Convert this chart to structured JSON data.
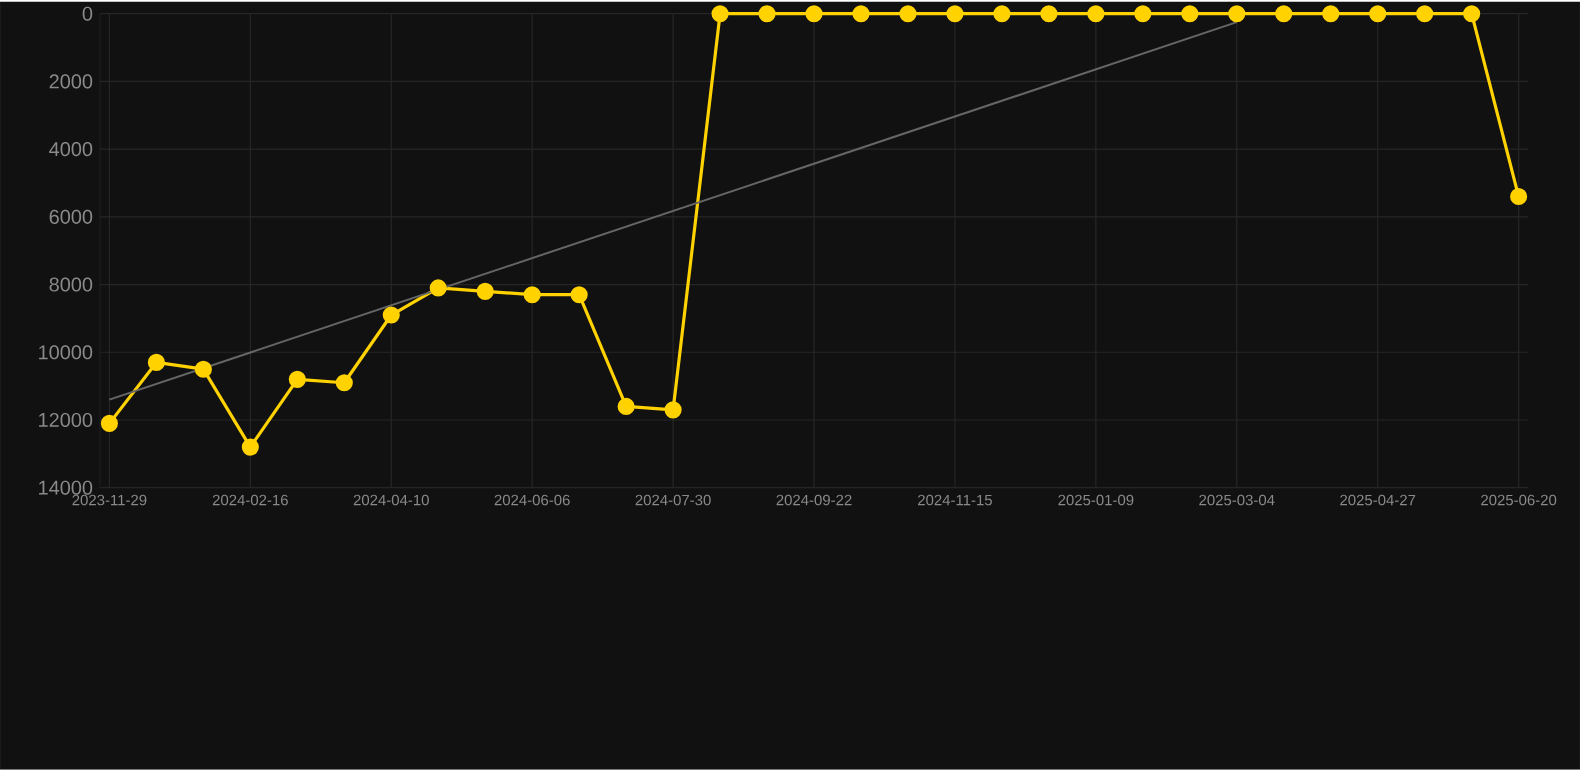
{
  "chart_data": {
    "type": "line",
    "categories": [
      "2023-11-29",
      null,
      null,
      "2024-02-16",
      null,
      null,
      "2024-04-10",
      null,
      null,
      "2024-06-06",
      null,
      null,
      "2024-07-30",
      null,
      null,
      "2024-09-22",
      null,
      null,
      "2024-11-15",
      null,
      null,
      "2025-01-09",
      null,
      null,
      "2025-03-04",
      null,
      null,
      "2025-04-27",
      null,
      null,
      "2025-06-20"
    ],
    "series": [
      {
        "color": "#ffd200",
        "values": [
          12100,
          10300,
          10500,
          12800,
          10800,
          10900,
          8900,
          8100,
          8200,
          8300,
          8300,
          11600,
          11700,
          0,
          0,
          0,
          0,
          0,
          0,
          0,
          0,
          0,
          0,
          0,
          0,
          0,
          0,
          0,
          0,
          0,
          5400
        ]
      },
      {
        "type": "line",
        "color": "#666666",
        "marker": "none",
        "values": [
          11400,
          null,
          null,
          null,
          null,
          null,
          null,
          null,
          null,
          null,
          null,
          null,
          null,
          null,
          null,
          null,
          null,
          null,
          null,
          null,
          null,
          null,
          null,
          null,
          250,
          null,
          null,
          null,
          null,
          null,
          null
        ]
      }
    ],
    "ylim": [
      14000,
      0
    ],
    "yticks": [
      0,
      2000,
      4000,
      6000,
      8000,
      10000,
      12000,
      14000
    ],
    "grid": true,
    "marker": "circle",
    "line_style": "solid"
  }
}
